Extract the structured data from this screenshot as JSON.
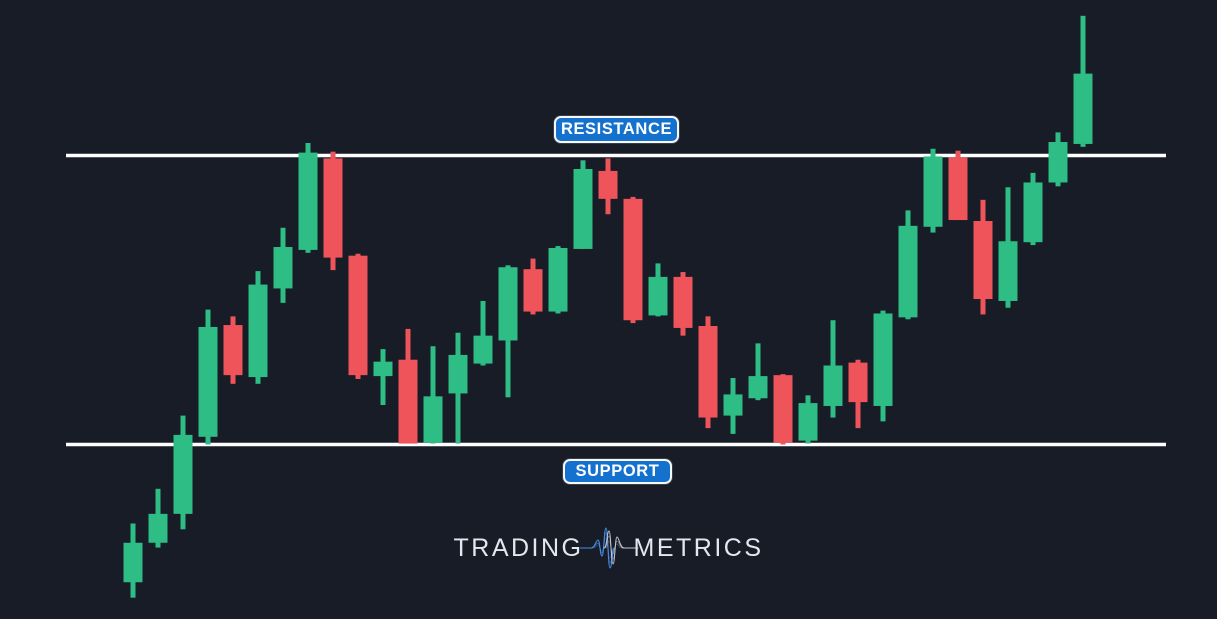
{
  "app": {
    "title": "Support and resistance candlestick chart"
  },
  "colors": {
    "background": "#171c27",
    "bullish": "#2ebd85",
    "bearish": "#ee5459",
    "level_line": "#ffffff",
    "badge_bg": "#1571ce",
    "badge_border": "#f5f7fa",
    "badge_text": "#ffffff",
    "logo_text": "#e4e7eb",
    "logo_icon_blue": "#4a8fe8",
    "logo_icon_gray": "#ccd3dc"
  },
  "logo": {
    "brand_left": "TRADING",
    "brand_right": "METRICS",
    "icon": "waveform-pulse-icon"
  },
  "chart_data": {
    "type": "candlestick",
    "title": "",
    "xlabel": "",
    "ylabel": "",
    "grid": false,
    "x_count": 39,
    "price_range": [
      84,
      145
    ],
    "ohlc_order": [
      "open",
      "high",
      "low",
      "close"
    ],
    "levels": {
      "resistance": {
        "label": "RESISTANCE",
        "price": 130
      },
      "support": {
        "label": "SUPPORT",
        "price": 100
      }
    },
    "candles": [
      [
        85.7,
        91.8,
        84.1,
        89.8
      ],
      [
        89.8,
        95.4,
        89.3,
        92.8
      ],
      [
        92.8,
        103.0,
        91.2,
        101.0
      ],
      [
        100.8,
        114.0,
        100.0,
        112.2
      ],
      [
        112.4,
        113.3,
        106.3,
        107.2
      ],
      [
        107.0,
        118.0,
        106.3,
        116.6
      ],
      [
        116.2,
        122.5,
        114.7,
        120.5
      ],
      [
        120.2,
        131.3,
        119.9,
        130.3
      ],
      [
        129.7,
        130.4,
        118.1,
        119.4
      ],
      [
        119.6,
        119.8,
        106.8,
        107.2
      ],
      [
        107.1,
        109.9,
        104.1,
        108.6
      ],
      [
        108.8,
        112.0,
        100.1,
        100.1
      ],
      [
        100.2,
        110.2,
        100.1,
        105.0
      ],
      [
        105.3,
        111.6,
        100.1,
        109.3
      ],
      [
        108.4,
        114.9,
        108.2,
        111.3
      ],
      [
        110.8,
        118.6,
        104.9,
        118.4
      ],
      [
        118.2,
        119.3,
        113.5,
        113.8
      ],
      [
        113.8,
        120.6,
        113.6,
        120.4
      ],
      [
        120.3,
        129.5,
        120.3,
        128.6
      ],
      [
        128.4,
        129.7,
        123.9,
        125.5
      ],
      [
        125.5,
        125.7,
        112.6,
        112.9
      ],
      [
        113.4,
        118.8,
        113.3,
        117.4
      ],
      [
        117.4,
        117.9,
        111.3,
        112.1
      ],
      [
        112.3,
        113.3,
        101.7,
        102.8
      ],
      [
        103.0,
        106.9,
        101.1,
        105.2
      ],
      [
        104.8,
        110.5,
        104.6,
        107.1
      ],
      [
        107.2,
        107.3,
        100.0,
        100.2
      ],
      [
        100.4,
        105.1,
        100.1,
        104.3
      ],
      [
        104.0,
        112.9,
        102.8,
        108.2
      ],
      [
        108.5,
        108.8,
        101.7,
        104.4
      ],
      [
        104.0,
        113.9,
        102.4,
        113.6
      ],
      [
        113.2,
        124.3,
        113.0,
        122.7
      ],
      [
        122.6,
        130.7,
        122.0,
        129.9
      ],
      [
        129.8,
        130.5,
        123.3,
        123.3
      ],
      [
        123.2,
        125.4,
        113.5,
        115.1
      ],
      [
        114.9,
        126.7,
        114.2,
        121.1
      ],
      [
        121.0,
        128.2,
        120.7,
        127.2
      ],
      [
        127.2,
        132.4,
        126.8,
        131.4
      ],
      [
        131.2,
        144.5,
        130.9,
        138.5
      ]
    ]
  }
}
